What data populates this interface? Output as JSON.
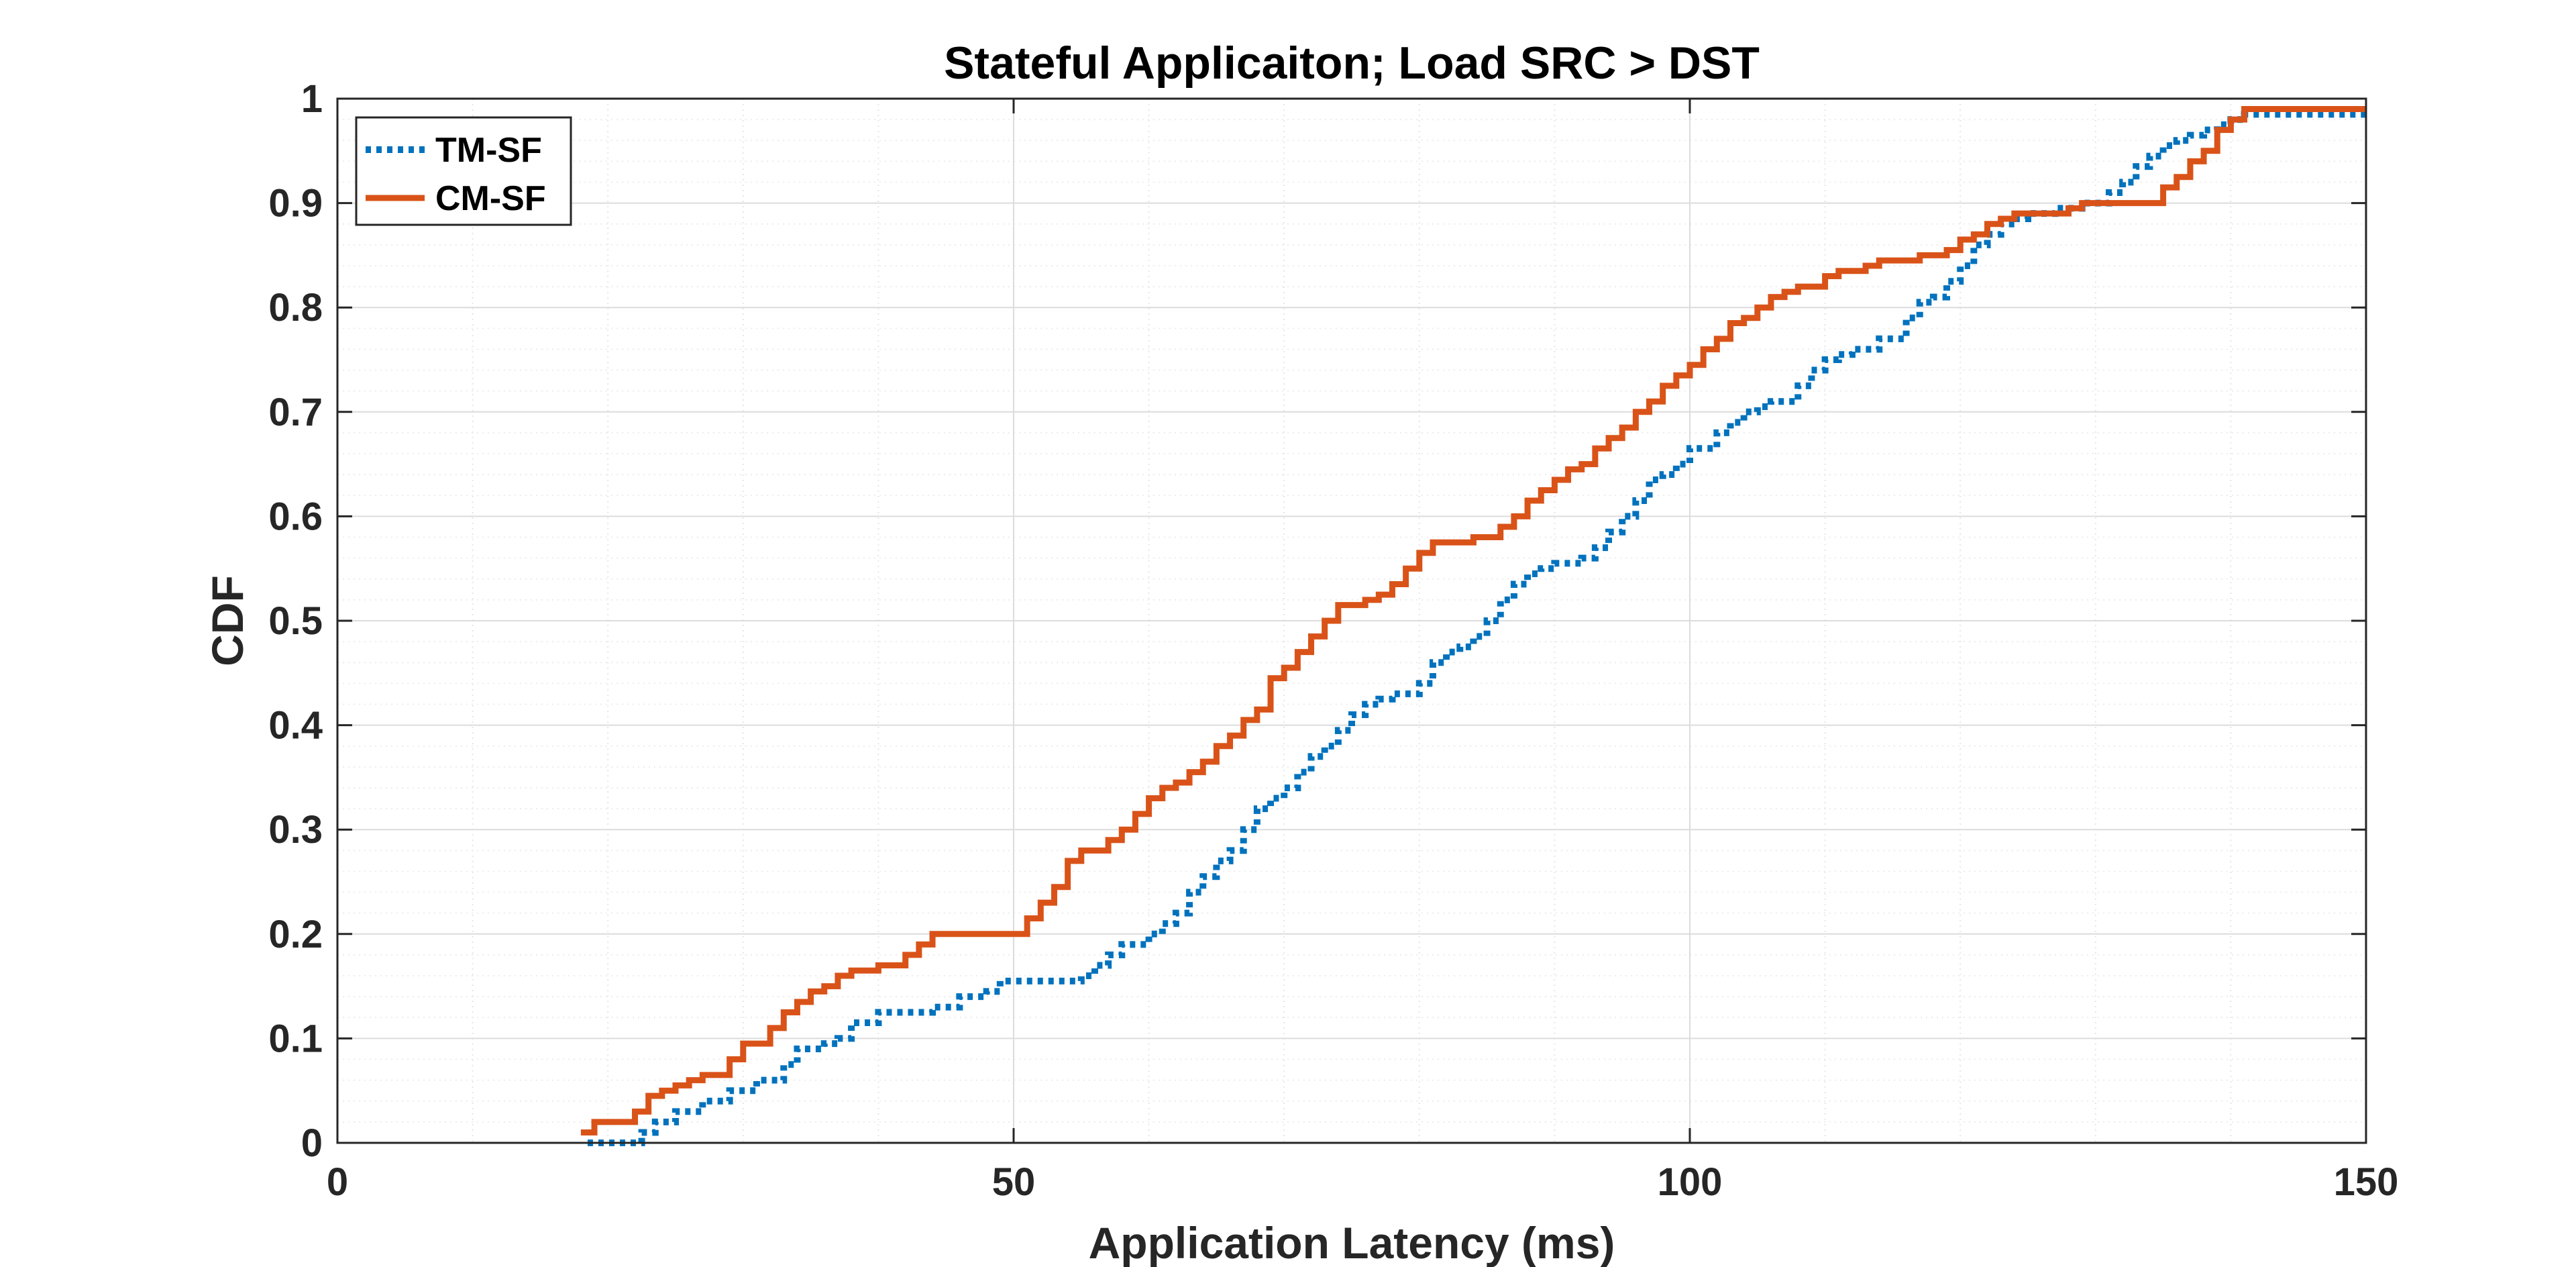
{
  "chart_data": {
    "type": "line",
    "title": "Stateful Applicaiton; Load SRC > DST",
    "xlabel": "Application Latency (ms)",
    "ylabel": "CDF",
    "xlim": [
      0,
      150
    ],
    "ylim": [
      0,
      1
    ],
    "xticks": [
      "0",
      "50",
      "100",
      "150"
    ],
    "yticks": [
      "0",
      "0.1",
      "0.2",
      "0.3",
      "0.4",
      "0.5",
      "0.6",
      "0.7",
      "0.8",
      "0.9",
      "1"
    ],
    "grid": true,
    "minor_grid": true,
    "legend_position": "top-left",
    "series": [
      {
        "name": "TM-SF",
        "color": "#0072BD",
        "style": "dotted",
        "x": [
          18.5,
          22.5,
          23.5,
          25,
          27,
          29,
          31,
          33,
          34,
          36,
          37,
          38,
          40,
          44,
          46,
          48,
          49,
          51,
          55,
          56,
          57,
          58,
          60,
          61,
          62,
          63,
          64,
          65,
          66,
          67,
          68,
          69,
          70,
          71,
          72,
          73,
          74,
          75,
          76,
          77,
          78,
          80,
          81,
          82,
          83,
          84,
          85,
          86,
          87,
          88,
          89,
          90,
          92,
          93,
          94,
          95,
          96,
          97,
          98,
          99,
          100,
          102,
          103,
          104,
          105,
          106,
          108,
          109,
          110,
          111,
          112,
          114,
          116,
          117,
          118,
          119,
          120,
          121,
          122,
          123,
          124,
          125,
          127,
          129,
          131,
          132,
          133,
          134,
          135,
          136,
          137,
          138,
          139,
          140,
          141,
          142,
          150
        ],
        "y": [
          0,
          0.01,
          0.02,
          0.03,
          0.04,
          0.05,
          0.06,
          0.075,
          0.09,
          0.095,
          0.1,
          0.115,
          0.125,
          0.13,
          0.14,
          0.145,
          0.155,
          0.155,
          0.16,
          0.17,
          0.18,
          0.19,
          0.2,
          0.21,
          0.22,
          0.24,
          0.255,
          0.27,
          0.28,
          0.3,
          0.32,
          0.33,
          0.34,
          0.355,
          0.37,
          0.38,
          0.395,
          0.41,
          0.42,
          0.425,
          0.43,
          0.44,
          0.46,
          0.47,
          0.475,
          0.485,
          0.5,
          0.52,
          0.535,
          0.545,
          0.55,
          0.555,
          0.56,
          0.57,
          0.585,
          0.6,
          0.615,
          0.635,
          0.64,
          0.65,
          0.665,
          0.68,
          0.69,
          0.7,
          0.705,
          0.71,
          0.725,
          0.74,
          0.75,
          0.755,
          0.76,
          0.77,
          0.79,
          0.805,
          0.81,
          0.825,
          0.84,
          0.86,
          0.87,
          0.88,
          0.885,
          0.89,
          0.895,
          0.9,
          0.91,
          0.92,
          0.935,
          0.945,
          0.955,
          0.96,
          0.965,
          0.97,
          0.975,
          0.98,
          0.985,
          0.985,
          0.985
        ]
      },
      {
        "name": "CM-SF",
        "color": "#D95319",
        "style": "solid",
        "x": [
          18,
          19,
          22,
          23,
          24,
          25,
          26,
          27,
          29,
          30,
          32,
          33,
          34,
          35,
          36,
          37,
          38,
          40,
          42,
          43,
          44,
          51,
          52,
          53,
          54,
          55,
          57,
          58,
          59,
          60,
          61,
          62,
          63,
          64,
          65,
          66,
          67,
          68,
          69,
          70,
          71,
          72,
          73,
          74,
          76,
          77,
          78,
          79,
          80,
          81,
          84,
          86,
          87,
          88,
          89,
          90,
          91,
          92,
          93,
          94,
          95,
          96,
          97,
          98,
          99,
          100,
          101,
          102,
          103,
          104,
          105,
          106,
          107,
          108,
          110,
          111,
          113,
          114,
          117,
          119,
          120,
          121,
          122,
          123,
          124,
          125,
          126,
          128,
          129,
          130,
          131,
          132,
          133,
          134,
          135,
          136,
          137,
          138,
          139,
          140,
          141,
          150
        ],
        "y": [
          0.01,
          0.02,
          0.03,
          0.045,
          0.05,
          0.055,
          0.06,
          0.065,
          0.08,
          0.095,
          0.11,
          0.125,
          0.135,
          0.145,
          0.15,
          0.16,
          0.165,
          0.17,
          0.18,
          0.19,
          0.2,
          0.215,
          0.23,
          0.245,
          0.27,
          0.28,
          0.29,
          0.3,
          0.315,
          0.33,
          0.34,
          0.345,
          0.355,
          0.365,
          0.38,
          0.39,
          0.405,
          0.415,
          0.445,
          0.455,
          0.47,
          0.485,
          0.5,
          0.515,
          0.52,
          0.525,
          0.535,
          0.55,
          0.565,
          0.575,
          0.58,
          0.59,
          0.6,
          0.615,
          0.625,
          0.635,
          0.645,
          0.65,
          0.665,
          0.675,
          0.685,
          0.7,
          0.71,
          0.725,
          0.735,
          0.745,
          0.76,
          0.77,
          0.785,
          0.79,
          0.8,
          0.81,
          0.815,
          0.82,
          0.83,
          0.835,
          0.84,
          0.845,
          0.85,
          0.855,
          0.865,
          0.87,
          0.88,
          0.885,
          0.89,
          0.89,
          0.89,
          0.895,
          0.9,
          0.9,
          0.9,
          0.9,
          0.9,
          0.9,
          0.915,
          0.925,
          0.94,
          0.95,
          0.97,
          0.98,
          0.99,
          0.99
        ]
      }
    ]
  }
}
